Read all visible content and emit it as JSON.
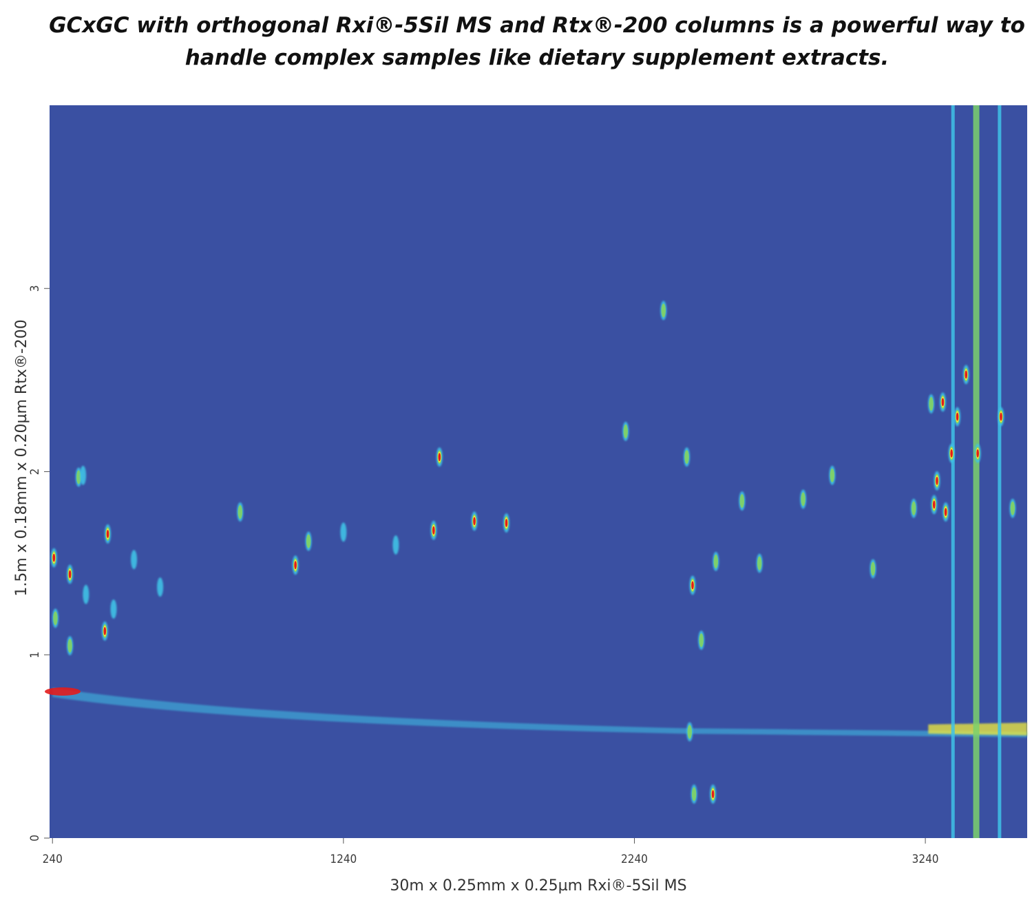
{
  "title_lines": [
    "GCxGC with orthogonal Rxi®-5Sil MS and Rtx®-200 columns is a powerful way to",
    "handle complex samples like dietary supplement extracts."
  ],
  "chart_data": {
    "type": "heatmap",
    "xlabel": "30m x 0.25mm x 0.25µm Rxi®-5Sil MS",
    "ylabel": "1.5m x 0.18mm x 0.20µm Rtx®-200",
    "x_ticks": [
      "240",
      "1240",
      "2240",
      "3240"
    ],
    "y_ticks": [
      "0",
      "1",
      "2",
      "3"
    ],
    "xlim": [
      230,
      3590
    ],
    "ylim": [
      0,
      4
    ],
    "colors": {
      "background": "#3a50a2",
      "low": "#3fc2e6",
      "mid": "#7dd06c",
      "high": "#f2ec3a",
      "peak": "#e21c1c"
    },
    "peaks": [
      {
        "x": 245,
        "y": 1.53,
        "level": "peak"
      },
      {
        "x": 250,
        "y": 1.2,
        "level": "mid"
      },
      {
        "x": 300,
        "y": 1.44,
        "level": "peak"
      },
      {
        "x": 330,
        "y": 1.97,
        "level": "mid"
      },
      {
        "x": 345,
        "y": 1.98,
        "level": "low"
      },
      {
        "x": 430,
        "y": 1.66,
        "level": "peak"
      },
      {
        "x": 420,
        "y": 1.13,
        "level": "peak"
      },
      {
        "x": 300,
        "y": 1.05,
        "level": "mid"
      },
      {
        "x": 355,
        "y": 1.33,
        "level": "low"
      },
      {
        "x": 450,
        "y": 1.25,
        "level": "low"
      },
      {
        "x": 520,
        "y": 1.52,
        "level": "low"
      },
      {
        "x": 610,
        "y": 1.37,
        "level": "low"
      },
      {
        "x": 885,
        "y": 1.78,
        "level": "mid"
      },
      {
        "x": 1075,
        "y": 1.49,
        "level": "peak"
      },
      {
        "x": 1120,
        "y": 1.62,
        "level": "mid"
      },
      {
        "x": 1240,
        "y": 1.67,
        "level": "low"
      },
      {
        "x": 1420,
        "y": 1.6,
        "level": "low"
      },
      {
        "x": 1550,
        "y": 1.68,
        "level": "peak"
      },
      {
        "x": 1570,
        "y": 2.08,
        "level": "peak"
      },
      {
        "x": 1690,
        "y": 1.73,
        "level": "peak"
      },
      {
        "x": 1800,
        "y": 1.72,
        "level": "peak"
      },
      {
        "x": 2210,
        "y": 2.22,
        "level": "mid"
      },
      {
        "x": 2420,
        "y": 2.08,
        "level": "mid"
      },
      {
        "x": 2440,
        "y": 1.38,
        "level": "peak"
      },
      {
        "x": 2470,
        "y": 1.08,
        "level": "mid"
      },
      {
        "x": 2520,
        "y": 1.51,
        "level": "mid"
      },
      {
        "x": 2610,
        "y": 1.84,
        "level": "mid"
      },
      {
        "x": 2670,
        "y": 1.5,
        "level": "mid"
      },
      {
        "x": 2820,
        "y": 1.85,
        "level": "mid"
      },
      {
        "x": 2920,
        "y": 1.98,
        "level": "mid"
      },
      {
        "x": 3060,
        "y": 1.47,
        "level": "mid"
      },
      {
        "x": 2430,
        "y": 0.58,
        "level": "mid"
      },
      {
        "x": 2445,
        "y": 0.24,
        "level": "mid"
      },
      {
        "x": 2510,
        "y": 0.24,
        "level": "peak"
      },
      {
        "x": 2340,
        "y": 2.88,
        "level": "mid"
      },
      {
        "x": 3200,
        "y": 1.8,
        "level": "mid"
      },
      {
        "x": 3260,
        "y": 2.37,
        "level": "mid"
      },
      {
        "x": 3270,
        "y": 1.82,
        "level": "peak"
      },
      {
        "x": 3280,
        "y": 1.95,
        "level": "peak"
      },
      {
        "x": 3300,
        "y": 2.38,
        "level": "peak"
      },
      {
        "x": 3310,
        "y": 1.78,
        "level": "peak"
      },
      {
        "x": 3330,
        "y": 2.1,
        "level": "peak"
      },
      {
        "x": 3350,
        "y": 2.3,
        "level": "peak"
      },
      {
        "x": 3380,
        "y": 2.53,
        "level": "peak"
      },
      {
        "x": 3420,
        "y": 2.1,
        "level": "peak"
      },
      {
        "x": 3500,
        "y": 2.3,
        "level": "peak"
      },
      {
        "x": 3540,
        "y": 1.8,
        "level": "mid"
      }
    ],
    "streaks": [
      {
        "x": 3335,
        "level": "low"
      },
      {
        "x": 3415,
        "level": "mid"
      },
      {
        "x": 3495,
        "level": "low"
      }
    ]
  }
}
